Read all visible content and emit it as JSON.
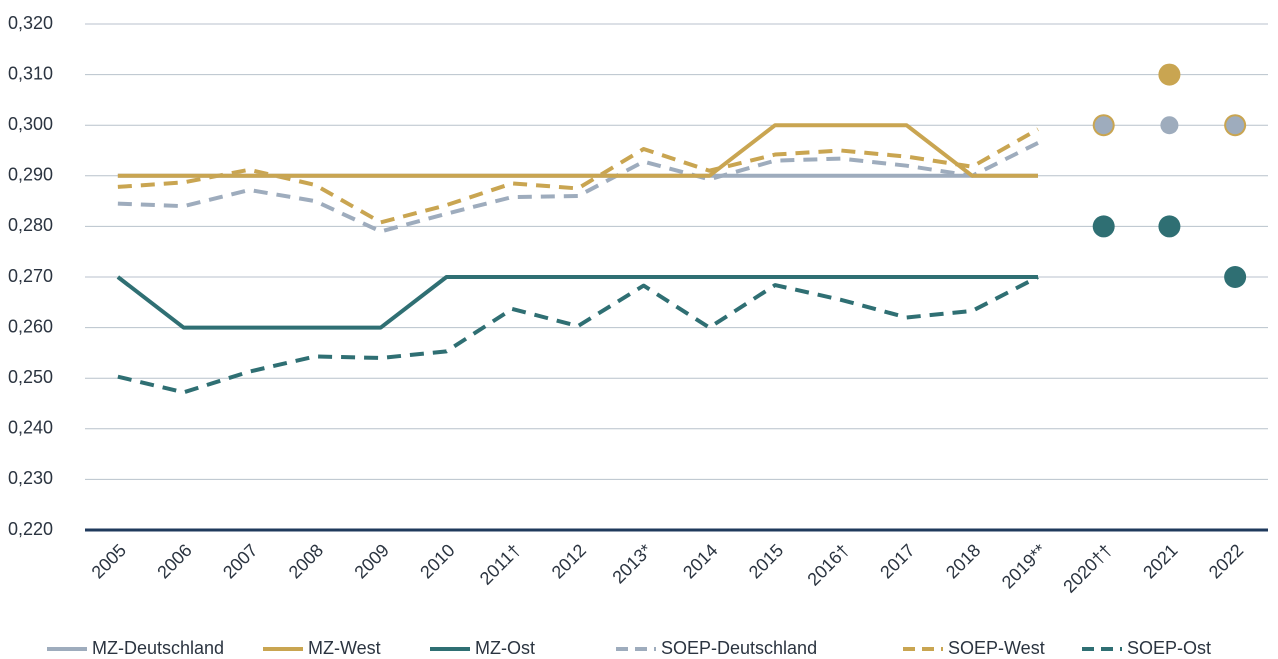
{
  "chart_data": {
    "type": "line",
    "categories": [
      "2005",
      "2006",
      "2007",
      "2008",
      "2009",
      "2010",
      "2011†",
      "2012",
      "2013*",
      "2014",
      "2015",
      "2016†",
      "2017",
      "2018",
      "2019**",
      "2020††",
      "2021",
      "2022"
    ],
    "break_after": 14,
    "ylim": [
      0.22,
      0.32
    ],
    "yticks": [
      {
        "value": 0.22,
        "label": "0,220"
      },
      {
        "value": 0.23,
        "label": "0,230"
      },
      {
        "value": 0.24,
        "label": "0,240"
      },
      {
        "value": 0.25,
        "label": "0,250"
      },
      {
        "value": 0.26,
        "label": "0,260"
      },
      {
        "value": 0.27,
        "label": "0,270"
      },
      {
        "value": 0.28,
        "label": "0,280"
      },
      {
        "value": 0.29,
        "label": "0,290"
      },
      {
        "value": 0.3,
        "label": "0,300"
      },
      {
        "value": 0.31,
        "label": "0,310"
      },
      {
        "value": 0.32,
        "label": "0,320"
      }
    ],
    "grid": true,
    "legend": "bottom",
    "series": [
      {
        "name": "MZ-Deutschland",
        "color": "#9eacbd",
        "dashed": false,
        "values": [
          0.29,
          0.29,
          0.29,
          0.29,
          0.29,
          0.29,
          0.29,
          0.29,
          0.29,
          0.29,
          0.29,
          0.29,
          0.29,
          0.29,
          0.29,
          0.3,
          0.3,
          0.3
        ]
      },
      {
        "name": "MZ-West",
        "color": "#c9a551",
        "dashed": false,
        "values": [
          0.29,
          0.29,
          0.29,
          0.29,
          0.29,
          0.29,
          0.29,
          0.29,
          0.29,
          0.29,
          0.3,
          0.3,
          0.3,
          0.29,
          0.29,
          0.3,
          0.31,
          0.3
        ]
      },
      {
        "name": "MZ-Ost",
        "color": "#2f6f73",
        "dashed": false,
        "values": [
          0.27,
          0.26,
          0.26,
          0.26,
          0.26,
          0.27,
          0.27,
          0.27,
          0.27,
          0.27,
          0.27,
          0.27,
          0.27,
          0.27,
          0.27,
          0.28,
          0.28,
          0.27
        ]
      },
      {
        "name": "SOEP-Deutschland",
        "color": "#9eacbd",
        "dashed": true,
        "values": [
          0.2845,
          0.284,
          0.2872,
          0.285,
          0.279,
          0.2825,
          0.2858,
          0.286,
          0.2928,
          0.2893,
          0.293,
          0.2934,
          0.292,
          0.29,
          0.2965,
          null,
          null,
          null
        ]
      },
      {
        "name": "SOEP-West",
        "color": "#c9a551",
        "dashed": true,
        "values": [
          0.2878,
          0.2887,
          0.2912,
          0.2882,
          0.2808,
          0.2842,
          0.2885,
          0.2875,
          0.2953,
          0.291,
          0.2942,
          0.295,
          0.2938,
          0.2918,
          0.2992,
          null,
          null,
          null
        ]
      },
      {
        "name": "SOEP-Ost",
        "color": "#2f6f73",
        "dashed": true,
        "values": [
          0.2503,
          0.2472,
          0.2513,
          0.2543,
          0.254,
          0.2553,
          0.2637,
          0.2603,
          0.2683,
          0.26,
          0.2684,
          0.2655,
          0.262,
          0.2633,
          0.27,
          null,
          null,
          null
        ]
      }
    ]
  }
}
